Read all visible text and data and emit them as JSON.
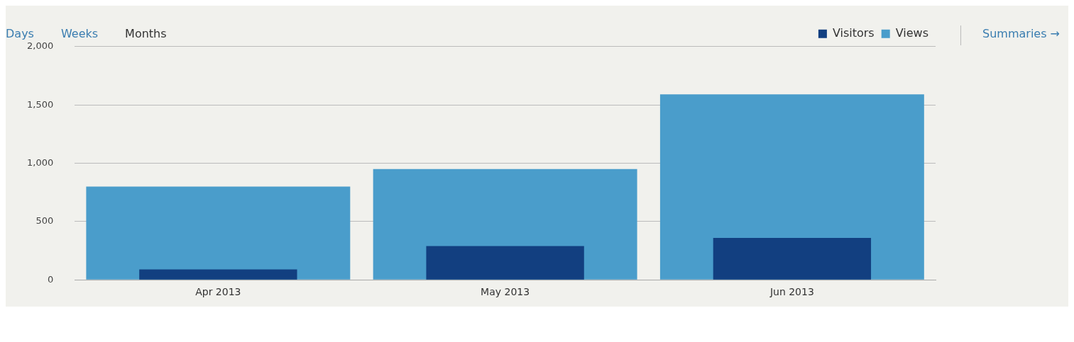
{
  "chart_data": {
    "type": "bar",
    "categories": [
      "Apr 2013",
      "May 2013",
      "Jun 2013"
    ],
    "series": [
      {
        "name": "Views",
        "color": "#4a9dcb",
        "values": [
          800,
          950,
          1590
        ]
      },
      {
        "name": "Visitors",
        "color": "#123f80",
        "values": [
          90,
          290,
          360
        ]
      }
    ],
    "ylim": [
      0,
      2000
    ],
    "yticks": [
      0,
      500,
      {
        "value": 1000,
        "label": "1,000"
      },
      {
        "value": 1500,
        "label": "1,500"
      },
      {
        "value": 2000,
        "label": "2,000"
      }
    ],
    "grid": "y",
    "legend": "top right",
    "annotations": [
      "Days",
      "Weeks",
      "Months",
      "Summaries →"
    ]
  }
}
